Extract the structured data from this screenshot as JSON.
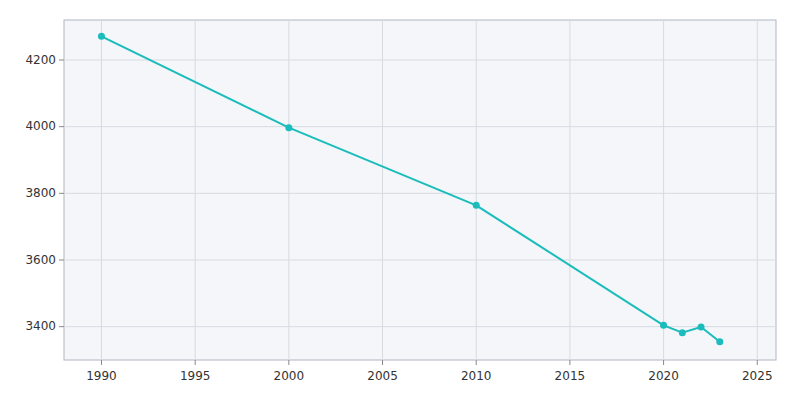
{
  "chart_data": {
    "type": "line",
    "x": [
      1990,
      2000,
      2010,
      2020,
      2021,
      2022,
      2023
    ],
    "values": [
      4271,
      3997,
      3764,
      3404,
      3382,
      3399,
      3355
    ],
    "color": "#1abcbc",
    "marker": "circle",
    "xlim": [
      1988,
      2026
    ],
    "ylim": [
      3300,
      4320
    ],
    "xticks": [
      1990,
      1995,
      2000,
      2005,
      2010,
      2015,
      2020,
      2025
    ],
    "yticks": [
      3400,
      3600,
      3800,
      4000,
      4200
    ],
    "grid": true
  }
}
